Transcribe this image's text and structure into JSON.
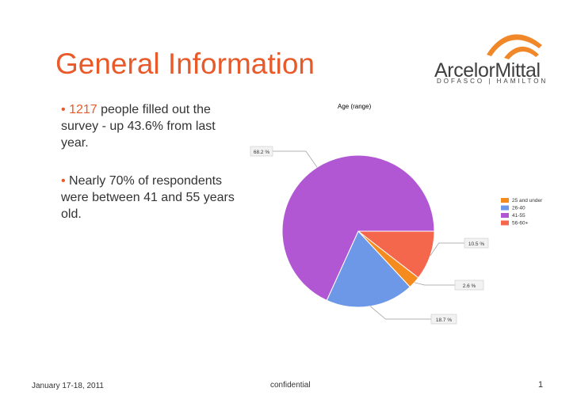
{
  "slide": {
    "title": "General Information",
    "page_number": "1",
    "footer_date": "January 17-18, 2011",
    "footer_center": "confidential"
  },
  "logo": {
    "wordmark": "ArcelorMittal",
    "subline": "DOFASCO | HAMILTON",
    "swoosh_color": "#f0882a"
  },
  "bullets": [
    {
      "marker": "•",
      "highlight": "1217",
      "text": " people filled out the survey - up 43.6% from last year."
    },
    {
      "marker": "•",
      "highlight": "",
      "text": " Nearly 70% of respondents were between 41 and 55 years old."
    }
  ],
  "colors": {
    "accent": "#e85a29",
    "text": "#333333"
  },
  "chart_data": {
    "type": "pie",
    "title": "Age (range)",
    "legend_position": "right",
    "categories": [
      "25 and under",
      "26-40",
      "41-55",
      "56-60+"
    ],
    "values": [
      2.6,
      18.7,
      68.2,
      10.5
    ],
    "labels": [
      "2.6 %",
      "18.7 %",
      "68.2 %",
      "10.5 %"
    ],
    "colors": [
      "#f58a1f",
      "#6d98e8",
      "#b257d4",
      "#f4674c"
    ]
  }
}
